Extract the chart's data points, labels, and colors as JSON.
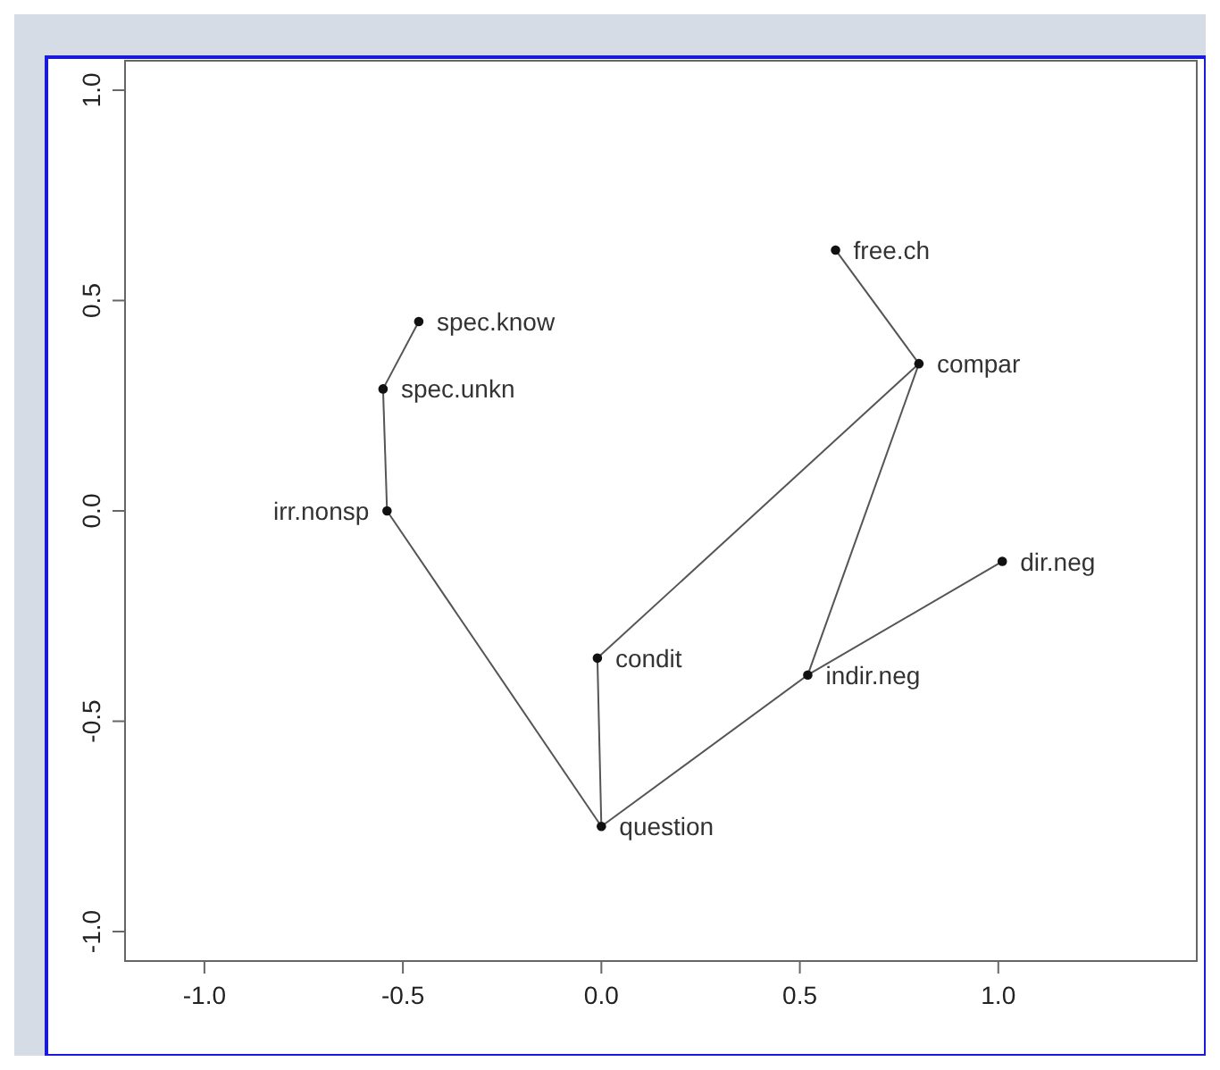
{
  "chart_data": {
    "type": "scatter",
    "xlim": [
      -1.2,
      1.5
    ],
    "ylim": [
      -1.07,
      1.07
    ],
    "xticks": [
      {
        "value": -1,
        "label": "-1.0"
      },
      {
        "value": -0.5,
        "label": "-0.5"
      },
      {
        "value": 0,
        "label": "0.0"
      },
      {
        "value": 0.5,
        "label": "0.5"
      },
      {
        "value": 1,
        "label": "1.0"
      }
    ],
    "yticks": [
      {
        "value": -1,
        "label": "-1.0"
      },
      {
        "value": -0.5,
        "label": "-0.5"
      },
      {
        "value": 0,
        "label": "0.0"
      },
      {
        "value": 0.5,
        "label": "0.5"
      },
      {
        "value": 1,
        "label": "1.0"
      }
    ],
    "grid": false,
    "series": [
      {
        "type": "line",
        "color": "#555555",
        "x": [
          0.59,
          0.8
        ],
        "values": [
          0.62,
          0.35
        ]
      },
      {
        "type": "line",
        "color": "#555555",
        "x": [
          0.8,
          -0.01
        ],
        "values": [
          0.35,
          -0.35
        ]
      },
      {
        "type": "line",
        "color": "#555555",
        "x": [
          0.8,
          0.52
        ],
        "values": [
          0.35,
          -0.39
        ]
      },
      {
        "type": "line",
        "color": "#555555",
        "x": [
          1.01,
          0.52
        ],
        "values": [
          -0.12,
          -0.39
        ]
      },
      {
        "type": "line",
        "color": "#555555",
        "x": [
          0.52,
          0
        ],
        "values": [
          -0.39,
          -0.75
        ]
      },
      {
        "type": "line",
        "color": "#555555",
        "x": [
          -0.01,
          0
        ],
        "values": [
          -0.35,
          -0.75
        ]
      },
      {
        "type": "line",
        "color": "#555555",
        "x": [
          0,
          -0.54
        ],
        "values": [
          -0.75,
          0
        ]
      },
      {
        "type": "line",
        "color": "#555555",
        "x": [
          -0.54,
          -0.55
        ],
        "values": [
          0,
          0.29
        ]
      },
      {
        "type": "line",
        "color": "#555555",
        "x": [
          -0.55,
          -0.46
        ],
        "values": [
          0.29,
          0.45
        ]
      },
      {
        "marker": "circle",
        "color": "#111111",
        "x": [
          0.59,
          0.8,
          -0.46,
          -0.55,
          -0.54,
          1.01,
          -0.01,
          0.52,
          0
        ],
        "values": [
          0.62,
          0.35,
          0.45,
          0.29,
          0,
          -0.12,
          -0.35,
          -0.39,
          -0.75
        ]
      }
    ],
    "annotations": [
      {
        "text": "free.ch",
        "x": 0.59,
        "y": 0.62
      },
      {
        "text": "compar",
        "x": 0.8,
        "y": 0.35
      },
      {
        "text": "spec.know",
        "x": -0.46,
        "y": 0.45
      },
      {
        "text": "spec.unkn",
        "x": -0.55,
        "y": 0.29
      },
      {
        "text": "irr.nonsp",
        "x": -0.54,
        "y": 0
      },
      {
        "text": "dir.neg",
        "x": 1.01,
        "y": -0.12
      },
      {
        "text": "condit",
        "x": -0.01,
        "y": -0.35
      },
      {
        "text": "indir.neg",
        "x": 0.52,
        "y": -0.39
      },
      {
        "text": "question",
        "x": 0,
        "y": -0.75
      }
    ]
  }
}
